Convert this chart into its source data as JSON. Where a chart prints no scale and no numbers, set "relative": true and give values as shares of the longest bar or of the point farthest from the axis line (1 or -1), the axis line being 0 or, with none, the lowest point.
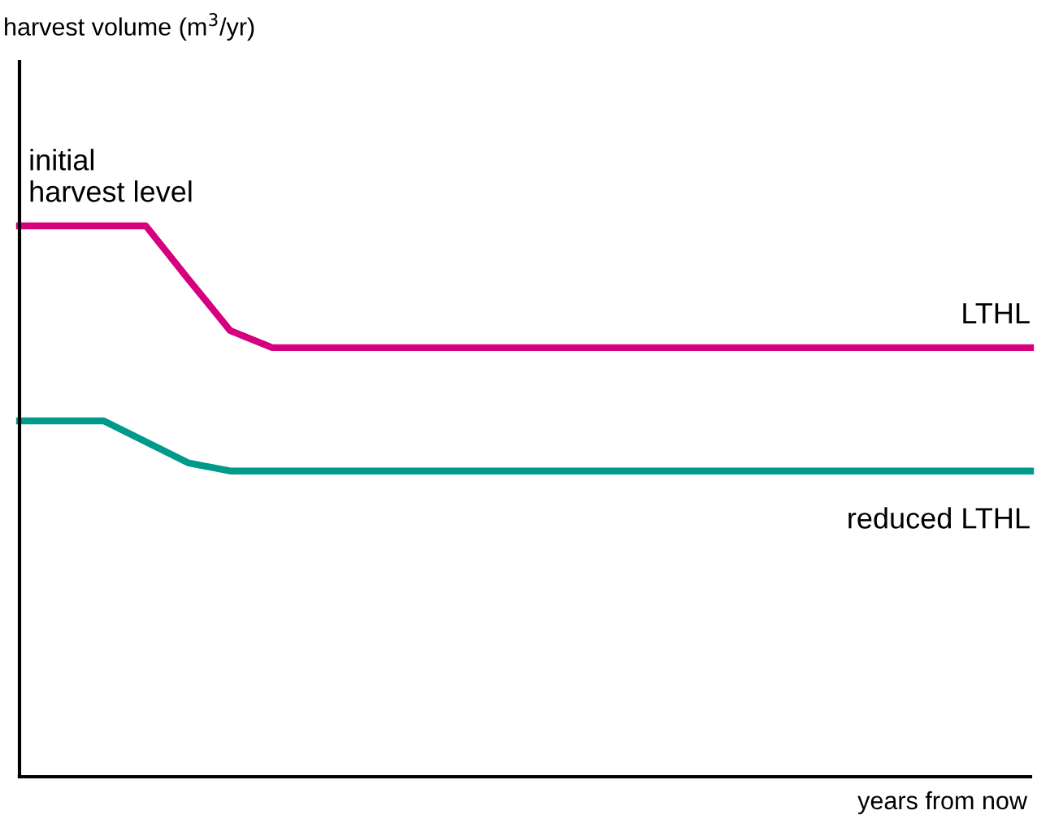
{
  "chart_data": {
    "type": "line",
    "relative": true,
    "xlabel": "years from now",
    "categories": [
      null,
      null,
      null,
      null,
      null,
      null,
      null,
      null,
      null,
      null,
      null,
      null,
      null,
      null,
      null,
      null,
      null,
      null,
      null,
      null,
      null,
      null,
      null,
      null,
      null
    ],
    "series": [
      {
        "name": "LTHL",
        "color": "#d6007f",
        "values": [
          1,
          1,
          1,
          1,
          0.904,
          0.81,
          0.779,
          0.779,
          0.779,
          0.779,
          0.779,
          0.779,
          0.779,
          0.779,
          0.779,
          0.779,
          0.779,
          0.779,
          0.779,
          0.779,
          0.779,
          0.779,
          0.779,
          0.779,
          0.779
        ]
      },
      {
        "name": "reduced LTHL",
        "color": "#009a8a",
        "values": [
          0.646,
          0.646,
          0.646,
          0.608,
          0.57,
          0.555,
          0.555,
          0.555,
          0.555,
          0.555,
          0.555,
          0.555,
          0.555,
          0.555,
          0.555,
          0.555,
          0.555,
          0.555,
          0.555,
          0.555,
          0.555,
          0.555,
          0.555,
          0.555,
          0.555
        ]
      }
    ],
    "annotations": [
      "initial\nharvest level",
      "harvest volume (m$^{3}$/yr)"
    ],
    "legend": false,
    "marker": "none",
    "line_style": "solid"
  }
}
